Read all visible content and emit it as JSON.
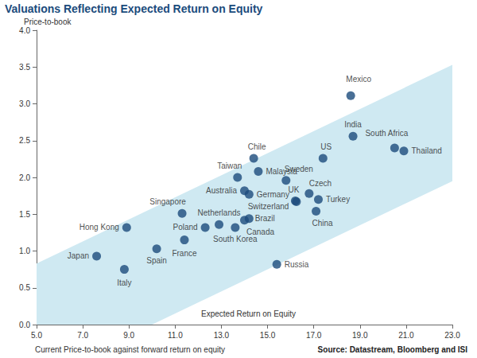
{
  "chart_data": {
    "type": "scatter",
    "title": "Valuations Reflecting Expected Return on Equity",
    "y_label": "Price-to-book",
    "x_label": "Expected Return on Equity",
    "note": "Current Price-to-book against forward return on equity",
    "source": "Source: Datastream, Bloomberg and ISI",
    "labels": [
      "Japan",
      "Italy",
      "Hong Kong",
      "Spain",
      "France",
      "Singapore",
      "Poland",
      "Netherlands",
      "South Korea",
      "Canada",
      "Brazil",
      "Taiwan",
      "Australia",
      "Germany",
      "Chile",
      "Malaysia",
      "Sweden",
      "UK",
      "Switzerland",
      "Czech",
      "Turkey",
      "China",
      "US",
      "Mexico",
      "India",
      "South Africa",
      "Thailand",
      "Russia"
    ],
    "x": [
      7.6,
      8.8,
      8.9,
      10.2,
      11.4,
      11.3,
      12.3,
      12.9,
      13.6,
      14.0,
      14.2,
      13.7,
      14.0,
      14.2,
      14.4,
      14.6,
      15.8,
      16.2,
      16.25,
      16.8,
      17.2,
      17.1,
      17.4,
      18.6,
      18.7,
      20.5,
      20.9,
      15.4
    ],
    "values": [
      0.93,
      0.75,
      1.32,
      1.03,
      1.15,
      1.51,
      1.32,
      1.36,
      1.32,
      1.42,
      1.44,
      2.0,
      1.82,
      1.77,
      2.26,
      2.08,
      1.96,
      1.68,
      1.67,
      1.78,
      1.7,
      1.54,
      2.26,
      3.11,
      2.56,
      2.4,
      2.36,
      0.82
    ],
    "color": "#1b4b7c",
    "marker": "circle",
    "band": {
      "x": [
        5,
        23
      ],
      "lower": [
        -0.75,
        1.95
      ],
      "upper": [
        0.83,
        3.53
      ],
      "color": "#cfe9f2"
    },
    "xlim": [
      5,
      23
    ],
    "xticks": [
      {
        "value": 5,
        "label": "5.0"
      },
      {
        "value": 7,
        "label": "7.0"
      },
      {
        "value": 9,
        "label": "9.0"
      },
      {
        "value": 11,
        "label": "11.0"
      },
      {
        "value": 13,
        "label": "13.0"
      },
      {
        "value": 15,
        "label": "15.0"
      },
      {
        "value": 17,
        "label": "17.0"
      },
      {
        "value": 19,
        "label": "19.0"
      },
      {
        "value": 21,
        "label": "21.0"
      },
      {
        "value": 23,
        "label": "23.0"
      }
    ],
    "ylim": [
      0,
      4
    ],
    "yticks": [
      {
        "value": 0,
        "label": "0.0"
      },
      {
        "value": 0.5,
        "label": "0.5"
      },
      {
        "value": 1,
        "label": "1.0"
      },
      {
        "value": 1.5,
        "label": "1.5"
      },
      {
        "value": 2,
        "label": "2.0"
      },
      {
        "value": 2.5,
        "label": "2.5"
      },
      {
        "value": 3,
        "label": "3.0"
      },
      {
        "value": 3.5,
        "label": "3.5"
      },
      {
        "value": 4,
        "label": "4.0"
      }
    ],
    "grid": false
  }
}
